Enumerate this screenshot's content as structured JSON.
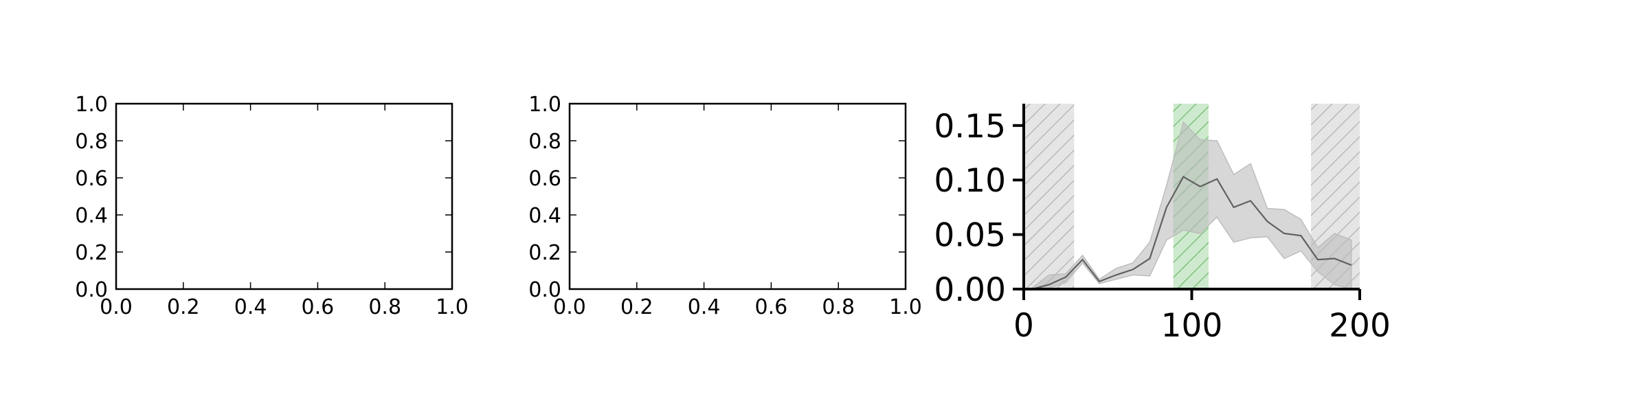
{
  "chart_data": [
    {
      "type": "line",
      "title": "",
      "xlabel": "",
      "ylabel": "",
      "xlim": [
        0,
        1
      ],
      "ylim": [
        0,
        1
      ],
      "x_ticks": [
        "0.0",
        "0.2",
        "0.4",
        "0.6",
        "0.8",
        "1.0"
      ],
      "y_ticks": [
        "0.0",
        "0.2",
        "0.4",
        "0.6",
        "0.8",
        "1.0"
      ],
      "series": [],
      "grid": false
    },
    {
      "type": "line",
      "title": "",
      "xlabel": "",
      "ylabel": "",
      "xlim": [
        0,
        1
      ],
      "ylim": [
        0,
        1
      ],
      "x_ticks": [
        "0.0",
        "0.2",
        "0.4",
        "0.6",
        "0.8",
        "1.0"
      ],
      "y_ticks": [
        "0.0",
        "0.2",
        "0.4",
        "0.6",
        "0.8",
        "1.0"
      ],
      "series": [],
      "grid": false
    },
    {
      "type": "area",
      "title": "",
      "xlabel": "",
      "ylabel": "",
      "xlim": [
        0,
        200
      ],
      "ylim": [
        0,
        0.17
      ],
      "x_ticks": [
        "0",
        "100",
        "200"
      ],
      "y_ticks": [
        "0.00",
        "0.05",
        "0.10",
        "0.15"
      ],
      "grid": false,
      "series": [
        {
          "x": [
            5,
            15,
            25,
            35,
            45,
            55,
            65,
            75,
            85,
            95,
            105,
            115,
            125,
            135,
            145,
            155,
            165,
            175,
            185,
            195
          ],
          "mean": [
            0.0,
            0.004,
            0.011,
            0.027,
            0.007,
            0.013,
            0.018,
            0.028,
            0.075,
            0.103,
            0.094,
            0.101,
            0.075,
            0.081,
            0.062,
            0.051,
            0.049,
            0.027,
            0.028,
            0.022
          ],
          "lower": [
            0.0,
            0.001,
            0.006,
            0.024,
            0.005,
            0.009,
            0.013,
            0.012,
            0.045,
            0.054,
            0.051,
            0.066,
            0.043,
            0.047,
            0.048,
            0.028,
            0.035,
            0.016,
            0.004,
            0.0
          ],
          "upper": [
            0.001,
            0.013,
            0.014,
            0.031,
            0.009,
            0.019,
            0.024,
            0.043,
            0.095,
            0.153,
            0.137,
            0.136,
            0.105,
            0.115,
            0.074,
            0.073,
            0.064,
            0.038,
            0.051,
            0.045
          ],
          "line_color": "#606060",
          "band_color": "#bdbdbd"
        }
      ],
      "regions": [
        {
          "x": [
            0,
            30
          ],
          "color": "#d3d3d3",
          "hatch": "diagonal"
        },
        {
          "x": [
            89,
            110
          ],
          "color": "#a6d9a6",
          "hatch": "diagonal"
        },
        {
          "x": [
            171,
            200
          ],
          "color": "#d3d3d3",
          "hatch": "diagonal"
        }
      ]
    }
  ]
}
